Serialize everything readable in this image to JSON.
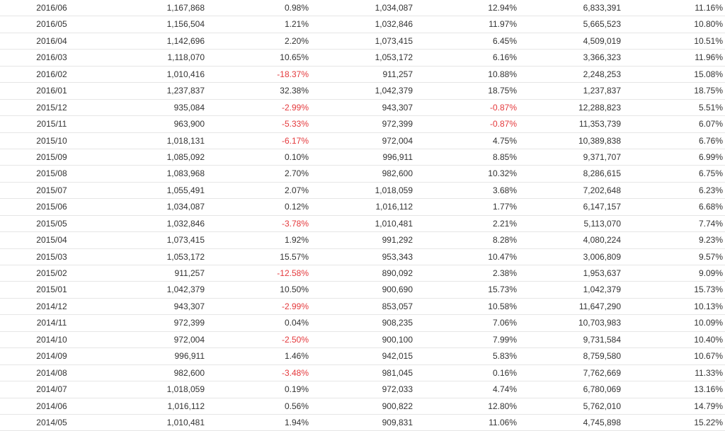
{
  "table": {
    "rows": [
      [
        "2016/06",
        "1,167,868",
        "0.98%",
        "1,034,087",
        "12.94%",
        "6,833,391",
        "11.16%"
      ],
      [
        "2016/05",
        "1,156,504",
        "1.21%",
        "1,032,846",
        "11.97%",
        "5,665,523",
        "10.80%"
      ],
      [
        "2016/04",
        "1,142,696",
        "2.20%",
        "1,073,415",
        "6.45%",
        "4,509,019",
        "10.51%"
      ],
      [
        "2016/03",
        "1,118,070",
        "10.65%",
        "1,053,172",
        "6.16%",
        "3,366,323",
        "11.96%"
      ],
      [
        "2016/02",
        "1,010,416",
        "-18.37%",
        "911,257",
        "10.88%",
        "2,248,253",
        "15.08%"
      ],
      [
        "2016/01",
        "1,237,837",
        "32.38%",
        "1,042,379",
        "18.75%",
        "1,237,837",
        "18.75%"
      ],
      [
        "2015/12",
        "935,084",
        "-2.99%",
        "943,307",
        "-0.87%",
        "12,288,823",
        "5.51%"
      ],
      [
        "2015/11",
        "963,900",
        "-5.33%",
        "972,399",
        "-0.87%",
        "11,353,739",
        "6.07%"
      ],
      [
        "2015/10",
        "1,018,131",
        "-6.17%",
        "972,004",
        "4.75%",
        "10,389,838",
        "6.76%"
      ],
      [
        "2015/09",
        "1,085,092",
        "0.10%",
        "996,911",
        "8.85%",
        "9,371,707",
        "6.99%"
      ],
      [
        "2015/08",
        "1,083,968",
        "2.70%",
        "982,600",
        "10.32%",
        "8,286,615",
        "6.75%"
      ],
      [
        "2015/07",
        "1,055,491",
        "2.07%",
        "1,018,059",
        "3.68%",
        "7,202,648",
        "6.23%"
      ],
      [
        "2015/06",
        "1,034,087",
        "0.12%",
        "1,016,112",
        "1.77%",
        "6,147,157",
        "6.68%"
      ],
      [
        "2015/05",
        "1,032,846",
        "-3.78%",
        "1,010,481",
        "2.21%",
        "5,113,070",
        "7.74%"
      ],
      [
        "2015/04",
        "1,073,415",
        "1.92%",
        "991,292",
        "8.28%",
        "4,080,224",
        "9.23%"
      ],
      [
        "2015/03",
        "1,053,172",
        "15.57%",
        "953,343",
        "10.47%",
        "3,006,809",
        "9.57%"
      ],
      [
        "2015/02",
        "911,257",
        "-12.58%",
        "890,092",
        "2.38%",
        "1,953,637",
        "9.09%"
      ],
      [
        "2015/01",
        "1,042,379",
        "10.50%",
        "900,690",
        "15.73%",
        "1,042,379",
        "15.73%"
      ],
      [
        "2014/12",
        "943,307",
        "-2.99%",
        "853,057",
        "10.58%",
        "11,647,290",
        "10.13%"
      ],
      [
        "2014/11",
        "972,399",
        "0.04%",
        "908,235",
        "7.06%",
        "10,703,983",
        "10.09%"
      ],
      [
        "2014/10",
        "972,004",
        "-2.50%",
        "900,100",
        "7.99%",
        "9,731,584",
        "10.40%"
      ],
      [
        "2014/09",
        "996,911",
        "1.46%",
        "942,015",
        "5.83%",
        "8,759,580",
        "10.67%"
      ],
      [
        "2014/08",
        "982,600",
        "-3.48%",
        "981,045",
        "0.16%",
        "7,762,669",
        "11.33%"
      ],
      [
        "2014/07",
        "1,018,059",
        "0.19%",
        "972,033",
        "4.74%",
        "6,780,069",
        "13.16%"
      ],
      [
        "2014/06",
        "1,016,112",
        "0.56%",
        "900,822",
        "12.80%",
        "5,762,010",
        "14.79%"
      ],
      [
        "2014/05",
        "1,010,481",
        "1.94%",
        "909,831",
        "11.06%",
        "4,745,898",
        "15.22%"
      ]
    ]
  }
}
